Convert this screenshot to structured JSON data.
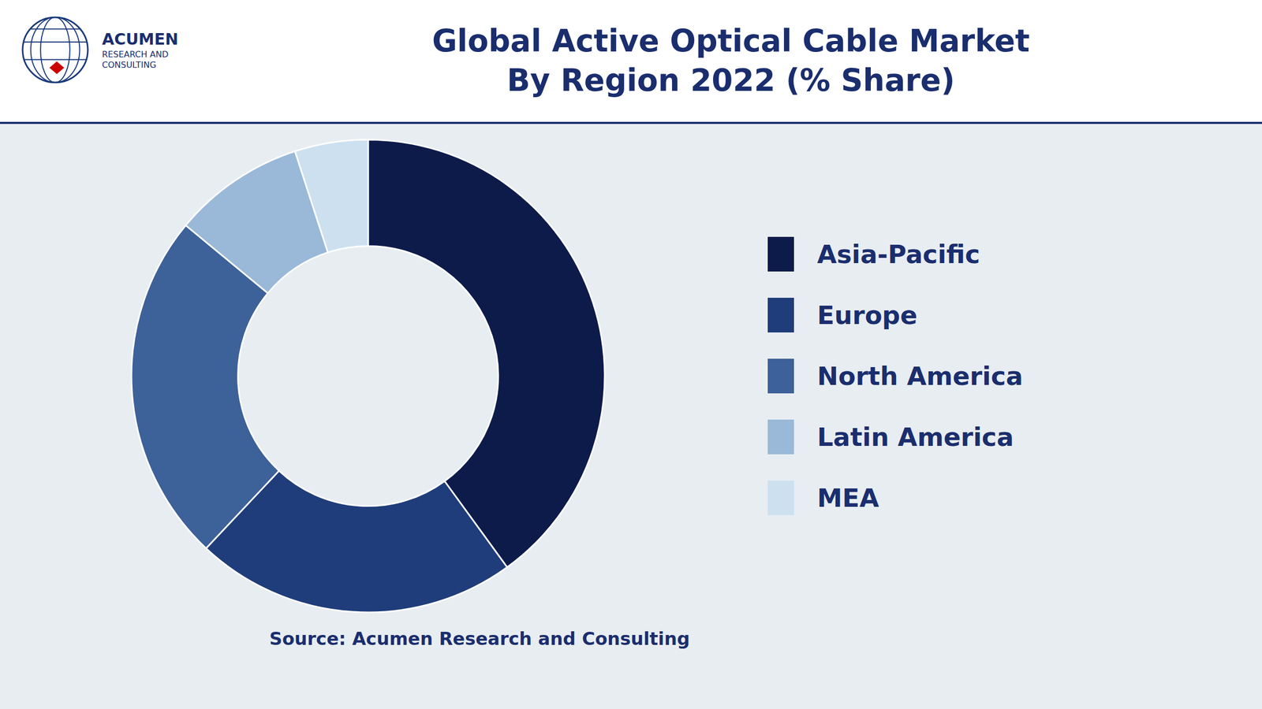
{
  "chart_data": {
    "type": "pie",
    "title": "Global Active Optical Cable Market",
    "subtitle": "By Region 2022 (% Share)",
    "categories": [
      "Asia-Pacific",
      "Europe",
      "North America",
      "Latin America",
      "MEA"
    ],
    "values": [
      40,
      22,
      24,
      9,
      5
    ],
    "colors": [
      "#0d1b4b",
      "#1f3d7a",
      "#3d6199",
      "#9ab8d8",
      "#cce0f0"
    ],
    "legend": "right",
    "source": "Source: Acumen Research and Consulting",
    "annotations": [
      "ACUMEN",
      "RESEARCH AND",
      "CONSULTING"
    ]
  }
}
